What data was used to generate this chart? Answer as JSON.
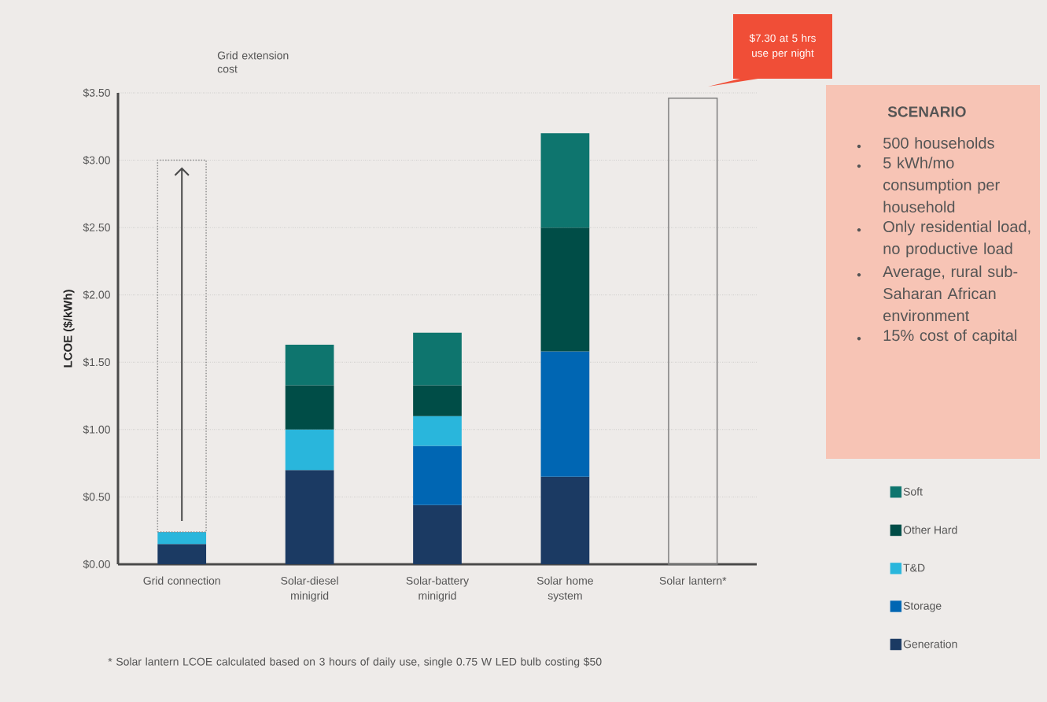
{
  "chart_data": {
    "type": "bar",
    "stacked": true,
    "ylabel": "LCOE ($/kWh)",
    "categories": [
      "Grid connection",
      "Solar-diesel minigrid",
      "Solar-battery minigrid",
      "Solar home system",
      "Solar lantern*"
    ],
    "series": [
      {
        "name": "Generation",
        "color": "#1b3a63",
        "values": [
          0.15,
          0.7,
          0.44,
          0.65,
          null
        ]
      },
      {
        "name": "Storage",
        "color": "#0066b3",
        "values": [
          null,
          null,
          0.44,
          0.93,
          null
        ]
      },
      {
        "name": "T&D",
        "color": "#29b6dc",
        "values": [
          0.09,
          0.3,
          0.22,
          null,
          null
        ]
      },
      {
        "name": "Other Hard",
        "color": "#004d47",
        "values": [
          null,
          0.33,
          0.23,
          0.92,
          null
        ]
      },
      {
        "name": "Soft",
        "color": "#0e756e",
        "values": [
          null,
          0.3,
          0.39,
          0.7,
          null
        ]
      },
      {
        "color": "#8c8c8c",
        "line_style": "dotted",
        "values": [
          2.76,
          null,
          null,
          null,
          null
        ]
      },
      {
        "color": "#7f7f7f",
        "line_style": "solid",
        "values": [
          null,
          null,
          null,
          null,
          3.46
        ]
      }
    ],
    "ylim": [
      0,
      3.5
    ],
    "yticks": [
      {
        "value": 0,
        "label": "$0.00"
      },
      {
        "value": 0.5,
        "label": "$0.50"
      },
      {
        "value": 1,
        "label": "$1.00"
      },
      {
        "value": 1.5,
        "label": "$1.50"
      },
      {
        "value": 2,
        "label": "$2.00"
      },
      {
        "value": 2.5,
        "label": "$2.50"
      },
      {
        "value": 3,
        "label": "$3.00"
      },
      {
        "value": 3.5,
        "label": "$3.50"
      }
    ],
    "grid": "y",
    "legend": "right",
    "annotations": [
      "Grid extension cost",
      "$7.30 at 5 hrs use per night",
      "SCENARIO",
      "500 households",
      "5 kWh/mo consumption per household",
      "Only residential load, no productive load",
      "Average, rural sub-Saharan African environment",
      "15% cost of capital",
      "* Solar lantern LCOE calculated based on 3 hours of daily use, single 0.75 W LED bulb costing $50"
    ]
  }
}
